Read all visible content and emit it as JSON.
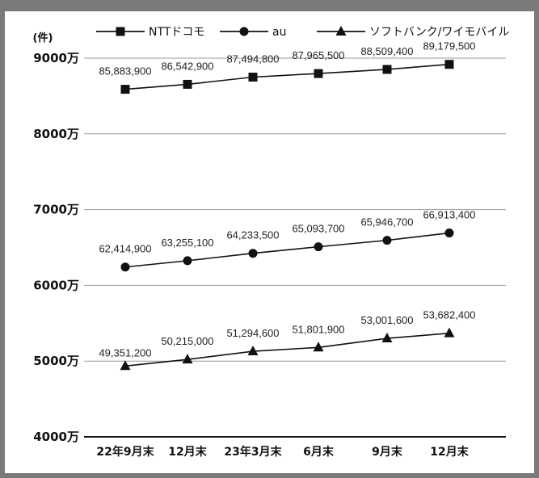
{
  "chart_data": {
    "type": "line",
    "unit_label": "(件)",
    "y_tick_labels": [
      "9000万",
      "8000万",
      "7000万",
      "6000万",
      "5000万",
      "4000万"
    ],
    "y_ticks": [
      90000000,
      80000000,
      70000000,
      60000000,
      50000000,
      40000000
    ],
    "ylim": [
      40000000,
      90000000
    ],
    "categories": [
      "22年9月末",
      "12月末",
      "23年3月末",
      "6月末",
      "9月末",
      "12月末"
    ],
    "grid": true,
    "legend_position": "top",
    "series": [
      {
        "name": "NTTドコモ",
        "marker": "square",
        "values": [
          85883900,
          86542900,
          87494800,
          87965500,
          88509400,
          89179500
        ],
        "labels": [
          "85,883,900",
          "86,542,900",
          "87,494,800",
          "87,965,500",
          "88,509,400",
          "89,179,500"
        ]
      },
      {
        "name": "au",
        "marker": "circle",
        "values": [
          62414900,
          63255100,
          64233500,
          65093700,
          65946700,
          66913400
        ],
        "labels": [
          "62,414,900",
          "63,255,100",
          "64,233,500",
          "65,093,700",
          "65,946,700",
          "66,913,400"
        ]
      },
      {
        "name": "ソフトバンク/ワイモバイル",
        "marker": "triangle",
        "values": [
          49351200,
          50215000,
          51294600,
          51801900,
          53001600,
          53682400
        ],
        "labels": [
          "49,351,200",
          "50,215,000",
          "51,294,600",
          "51,801,900",
          "53,001,600",
          "53,682,400"
        ]
      }
    ]
  },
  "colors": {
    "line": "#111111",
    "grid": "#999999",
    "frame": "#7a7a7a"
  }
}
